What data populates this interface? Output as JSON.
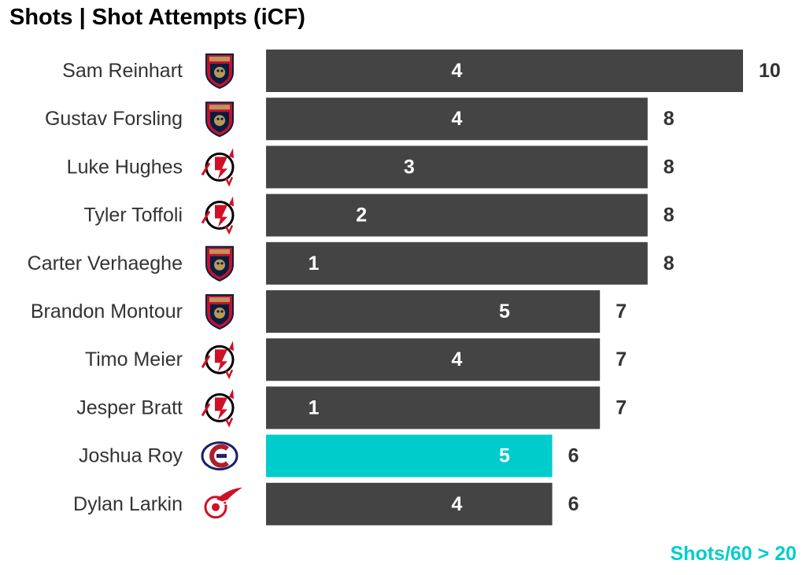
{
  "chart_data": {
    "type": "bar",
    "orientation": "horizontal",
    "title": "Shots | Shot Attempts (iCF)",
    "xlabel": "",
    "ylabel": "",
    "xlim": [
      0,
      10
    ],
    "grid": false,
    "legend": "none",
    "categories": [
      "Sam Reinhart",
      "Gustav Forsling",
      "Luke Hughes",
      "Tyler Toffoli",
      "Carter Verhaeghe",
      "Brandon Montour",
      "Timo Meier",
      "Jesper Bratt",
      "Joshua Roy",
      "Dylan Larkin"
    ],
    "teams": [
      "FLA",
      "FLA",
      "NJD",
      "NJD",
      "FLA",
      "FLA",
      "NJD",
      "NJD",
      "MTL",
      "DET"
    ],
    "team_icons": [
      "florida-panthers-icon",
      "florida-panthers-icon",
      "new-jersey-devils-icon",
      "new-jersey-devils-icon",
      "florida-panthers-icon",
      "florida-panthers-icon",
      "new-jersey-devils-icon",
      "new-jersey-devils-icon",
      "montreal-canadiens-icon",
      "detroit-red-wings-icon"
    ],
    "series": [
      {
        "values": [
          10,
          8,
          8,
          8,
          8,
          7,
          7,
          7,
          6,
          6
        ]
      },
      {
        "values": [
          4,
          4,
          3,
          2,
          1,
          5,
          4,
          1,
          5,
          4
        ]
      }
    ],
    "highlighted": [
      "Joshua Roy"
    ]
  },
  "colors": {
    "bar": "#444444",
    "highlight": "#00cccc",
    "label_text": "#333333",
    "inner_text": "#ffffff"
  },
  "footnote": "Shots/60 > 20"
}
